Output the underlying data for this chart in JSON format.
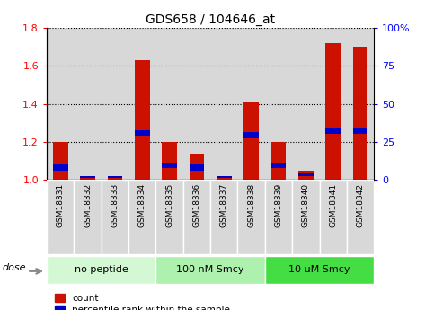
{
  "title": "GDS658 / 104646_at",
  "samples": [
    "GSM18331",
    "GSM18332",
    "GSM18333",
    "GSM18334",
    "GSM18335",
    "GSM18336",
    "GSM18337",
    "GSM18338",
    "GSM18339",
    "GSM18340",
    "GSM18341",
    "GSM18342"
  ],
  "red_top": [
    1.2,
    1.02,
    1.02,
    1.63,
    1.2,
    1.14,
    1.02,
    1.41,
    1.2,
    1.05,
    1.72,
    1.7
  ],
  "blue_bottom": [
    1.05,
    1.01,
    1.01,
    1.23,
    1.06,
    1.05,
    1.01,
    1.22,
    1.06,
    1.02,
    1.24,
    1.24
  ],
  "blue_top": [
    1.08,
    1.02,
    1.02,
    1.26,
    1.09,
    1.08,
    1.02,
    1.25,
    1.09,
    1.04,
    1.27,
    1.27
  ],
  "groups": [
    {
      "label": "no peptide",
      "start": 0,
      "end": 4
    },
    {
      "label": "100 nM Smcy",
      "start": 4,
      "end": 8
    },
    {
      "label": "10 uM Smcy",
      "start": 8,
      "end": 12
    }
  ],
  "group_colors": [
    "#d4f7d4",
    "#aef0ae",
    "#44dd44"
  ],
  "ylim": [
    1.0,
    1.8
  ],
  "yticks_left": [
    1.0,
    1.2,
    1.4,
    1.6,
    1.8
  ],
  "yticks_right": [
    0,
    25,
    50,
    75,
    100
  ],
  "red_color": "#cc1100",
  "blue_color": "#0000cc",
  "bar_width": 0.55,
  "col_bg_color": "#d8d8d8",
  "col_bg_alt": "#ffffff",
  "tick_label_size": 6.5,
  "group_label_size": 8,
  "title_fontsize": 10
}
